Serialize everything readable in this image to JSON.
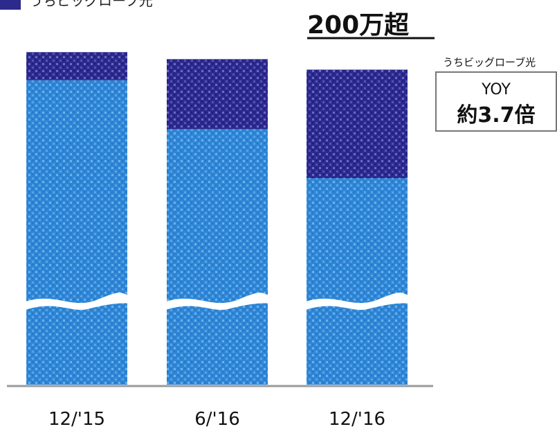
{
  "chart_data": {
    "type": "bar",
    "stacked": true,
    "categories": [
      "12/'15",
      "6/'16",
      "12/'16"
    ],
    "series": [
      {
        "name": "",
        "values": [
          87,
          73,
          59
        ],
        "color": "#2f86d6"
      },
      {
        "name": "うちビッグローブ光",
        "values": [
          8,
          20,
          31
        ],
        "color": "#2c2a8c"
      }
    ],
    "axis_break": true,
    "grid": false,
    "legend": "top-left",
    "annotations": {
      "headline": "200万超",
      "yoy_caption": "うちビッグローブ光",
      "yoy_label": "YOY",
      "yoy_value": "約3.7倍"
    }
  },
  "colors": {
    "base_bar": "#2f86d6",
    "highlight_bar": "#2c2a8c",
    "baseline": "#9a9a9a"
  }
}
